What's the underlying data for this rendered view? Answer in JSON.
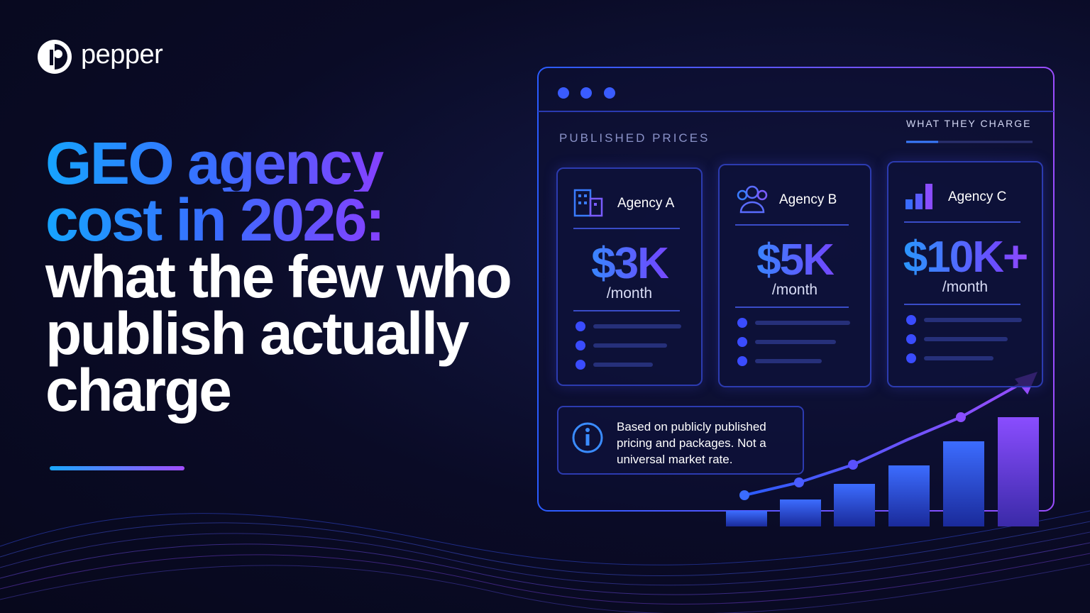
{
  "brand": "pepper",
  "title": {
    "highlight_lines": [
      "GEO agency",
      "cost in 2026:"
    ],
    "rest": "what the few who publish actually charge"
  },
  "panel": {
    "label": "PUBLISHED PRICES",
    "tab": "WHAT THEY CHARGE",
    "cards": [
      {
        "name": "Agency A",
        "price": "$3K",
        "period": "/month"
      },
      {
        "name": "Agency B",
        "price": "$5K",
        "period": "/month"
      },
      {
        "name": "Agency C",
        "price": "$10K+",
        "period": "/month"
      }
    ],
    "note": "Based on publicly published pricing and packages. Not a universal market rate."
  }
}
